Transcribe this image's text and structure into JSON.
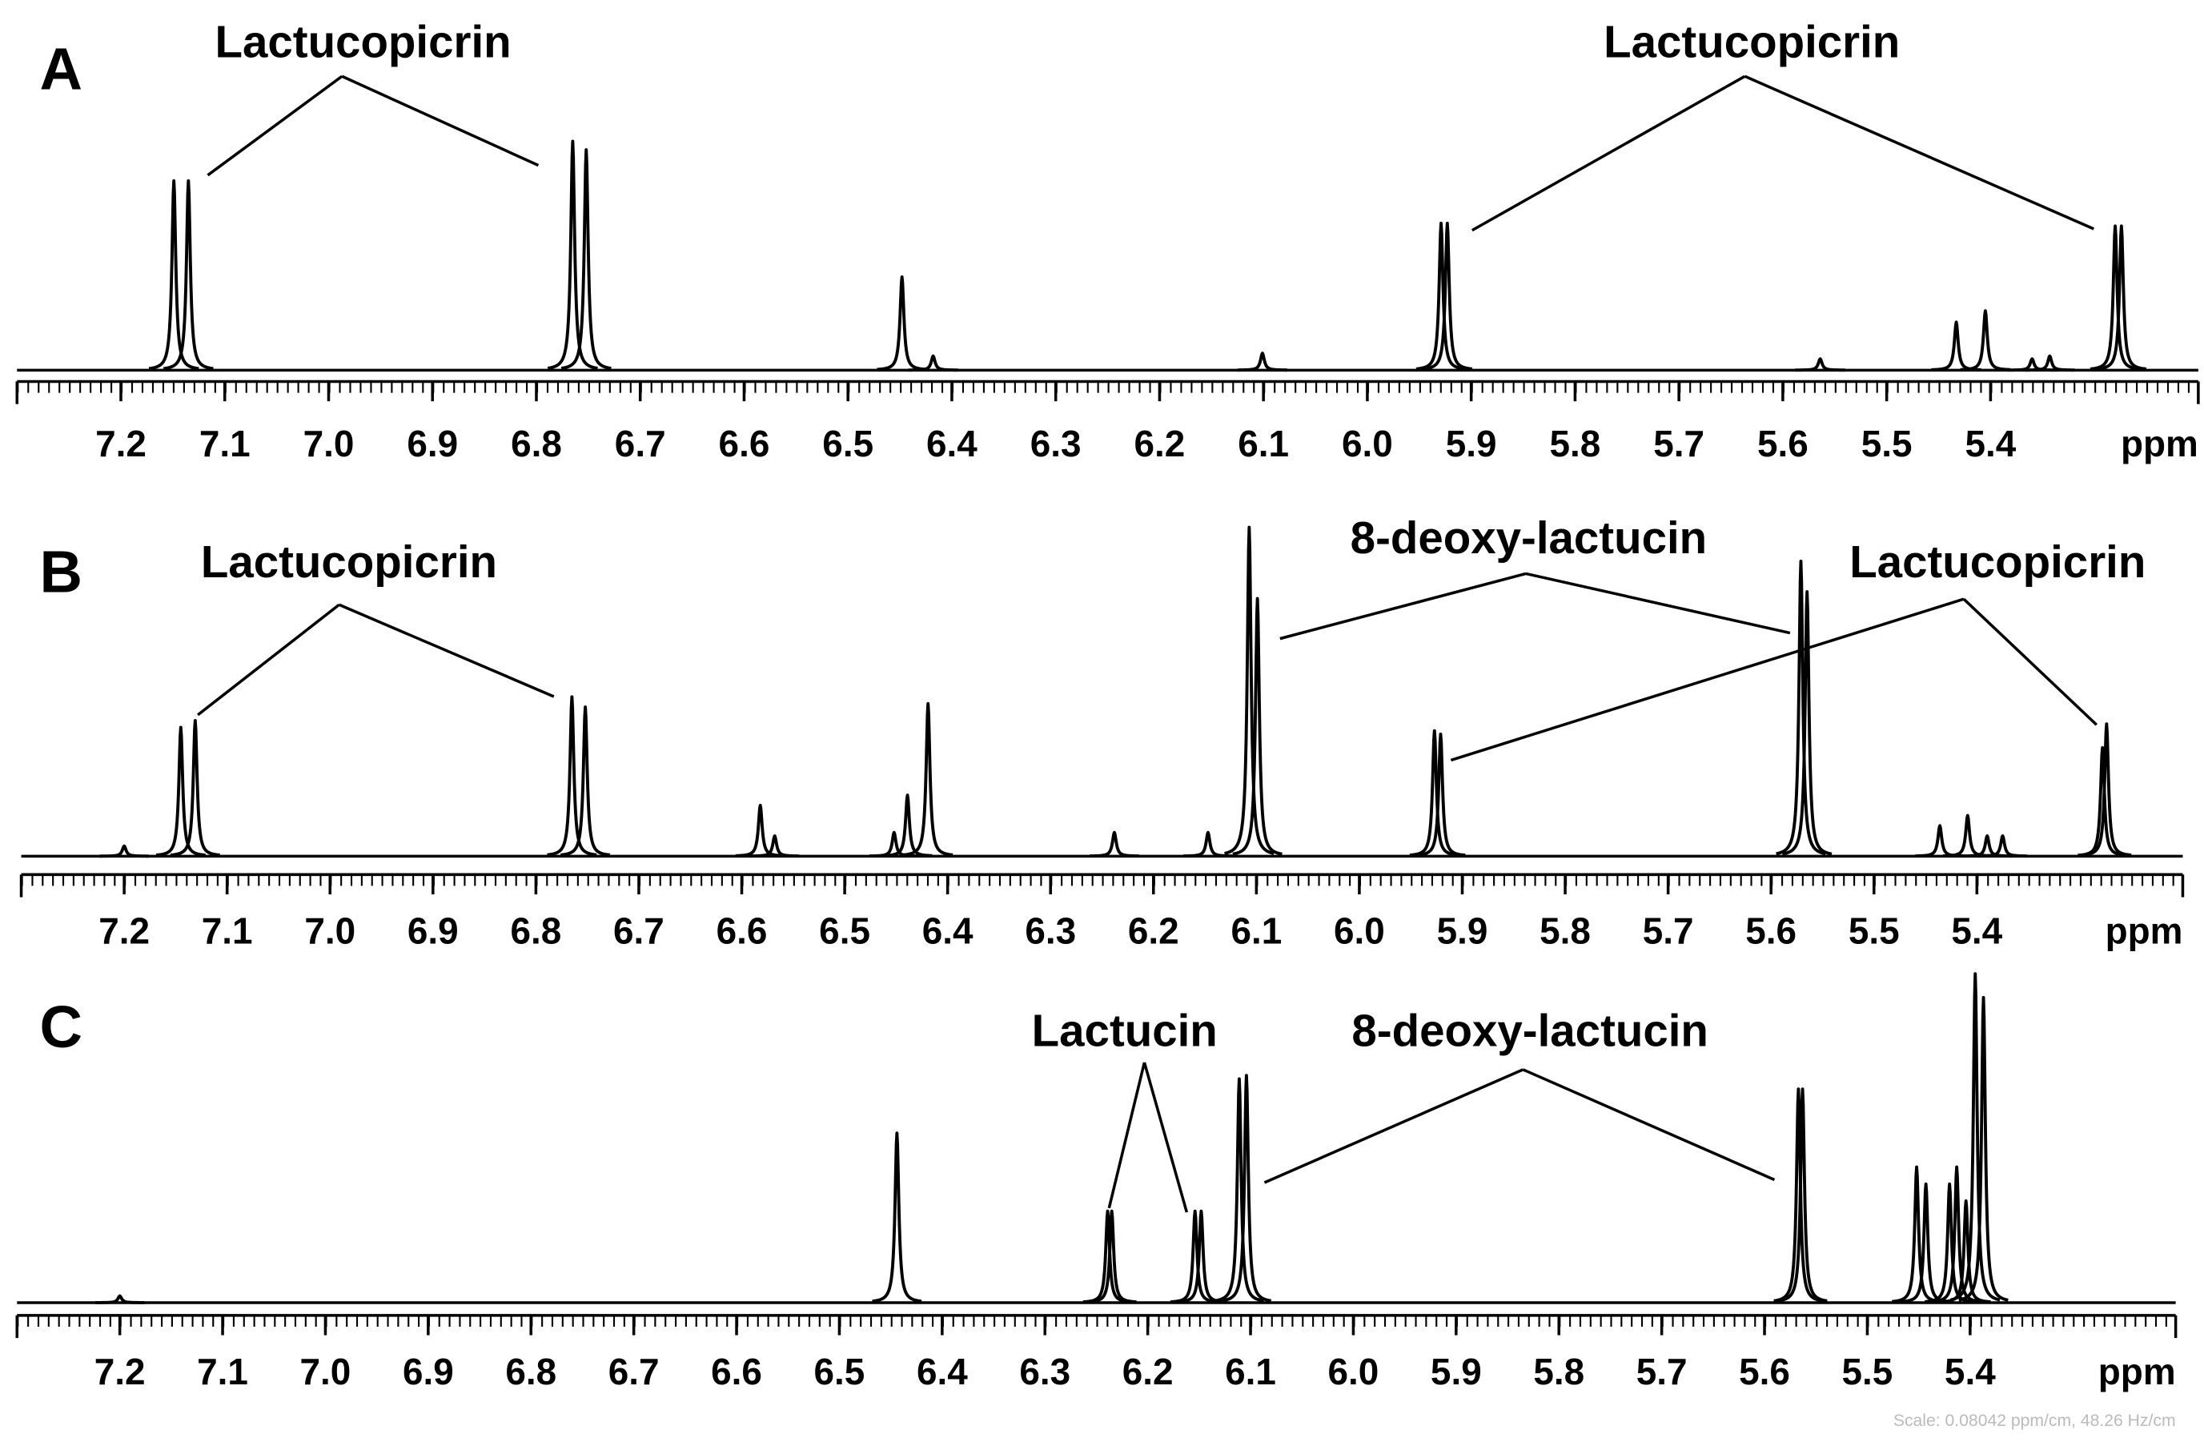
{
  "chart_data": [
    {
      "type": "spectrum",
      "panel": "A",
      "x_label": "ppm",
      "annotations": [
        "Lactucopicrin",
        "Lactucopicrin"
      ],
      "x": [
        7.149,
        7.135,
        6.765,
        6.752,
        6.448,
        6.418,
        6.101,
        5.929,
        5.923,
        5.564,
        5.433,
        5.405,
        5.343,
        5.36,
        5.28,
        5.274
      ],
      "values": [
        67,
        67,
        81,
        78,
        33,
        5,
        6,
        52,
        52,
        4,
        17,
        21,
        5,
        4,
        51,
        51
      ],
      "xlim": [
        7.3,
        5.2
      ],
      "ylim": [
        0,
        100
      ],
      "xticks": [
        7.2,
        7.1,
        {
          "value": 7,
          "label": "7.0"
        },
        6.9,
        6.8,
        6.7,
        6.6,
        6.5,
        6.4,
        6.3,
        6.2,
        6.1,
        {
          "value": 6,
          "label": "6.0"
        },
        5.9,
        5.8,
        5.7,
        5.6,
        5.5,
        5.4
      ],
      "color": "#000000"
    },
    {
      "type": "spectrum",
      "panel": "B",
      "x_label": "ppm",
      "annotations": [
        "Lactucopicrin",
        "8-deoxy-lactucin",
        "Lactucopicrin"
      ],
      "x": [
        7.2,
        7.145,
        7.131,
        6.765,
        6.752,
        6.582,
        6.568,
        6.452,
        6.439,
        6.419,
        6.238,
        6.147,
        6.107,
        6.099,
        5.927,
        5.921,
        5.571,
        5.565,
        5.436,
        5.409,
        5.39,
        5.375,
        5.278,
        5.274
      ],
      "values": [
        3,
        38,
        40,
        47,
        44,
        15,
        6,
        7,
        18,
        45,
        7,
        7,
        97,
        76,
        37,
        36,
        87,
        78,
        9,
        12,
        6,
        6,
        32,
        39
      ],
      "xlim": [
        7.3,
        5.2
      ],
      "ylim": [
        0,
        100
      ],
      "xticks": [
        7.2,
        7.1,
        {
          "value": 7,
          "label": "7.0"
        },
        6.9,
        6.8,
        6.7,
        6.6,
        6.5,
        6.4,
        6.3,
        6.2,
        6.1,
        {
          "value": 6,
          "label": "6.0"
        },
        5.9,
        5.8,
        5.7,
        5.6,
        5.5,
        5.4
      ],
      "color": "#000000"
    },
    {
      "type": "spectrum",
      "panel": "C",
      "x_label": "ppm",
      "annotations": [
        "Lactucin",
        "8-deoxy-lactucin"
      ],
      "x": [
        7.2,
        6.444,
        6.239,
        6.235,
        6.154,
        6.148,
        6.111,
        6.104,
        5.567,
        5.563,
        5.452,
        5.443,
        5.42,
        5.413,
        5.404,
        5.395,
        5.387
      ],
      "values": [
        2,
        50,
        27,
        27,
        27,
        27,
        66,
        67,
        63,
        63,
        40,
        35,
        35,
        40,
        30,
        97,
        90
      ],
      "xlim": [
        7.3,
        5.2
      ],
      "ylim": [
        0,
        100
      ],
      "xticks": [
        7.2,
        7.1,
        {
          "value": 7,
          "label": "7.0"
        },
        6.9,
        6.8,
        6.7,
        6.6,
        6.5,
        6.4,
        6.3,
        6.2,
        6.1,
        {
          "value": 6,
          "label": "6.0"
        },
        5.9,
        5.8,
        5.7,
        5.6,
        5.5,
        5.4
      ],
      "color": "#000000"
    }
  ],
  "footnote": "Scale: 0.08042 ppm/cm, 48.26 Hz/cm"
}
